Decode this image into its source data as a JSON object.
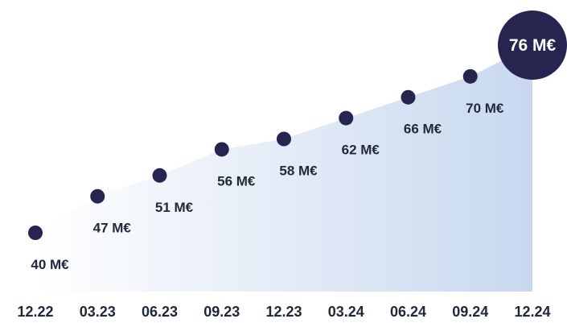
{
  "chart_data": {
    "type": "area",
    "categories": [
      "12.22",
      "03.23",
      "06.23",
      "09.23",
      "12.23",
      "03.24",
      "06.24",
      "09.24",
      "12.24"
    ],
    "values": [
      40,
      47,
      51,
      56,
      58,
      62,
      66,
      70,
      76
    ],
    "value_labels": [
      "40 M€",
      "47 M€",
      "51 M€",
      "56 M€",
      "58 M€",
      "62 M€",
      "66 M€",
      "70 M€",
      "76 M€"
    ],
    "unit": "M€",
    "title": "",
    "xlabel": "",
    "ylabel": "",
    "highlight_index": 8,
    "grid": false,
    "legend": "none",
    "colors": {
      "marker": "#25254f",
      "area_start": "#ffffff",
      "area_end": "#c8d8ef",
      "label": "#1f2937",
      "highlight_text": "#ffffff"
    }
  }
}
